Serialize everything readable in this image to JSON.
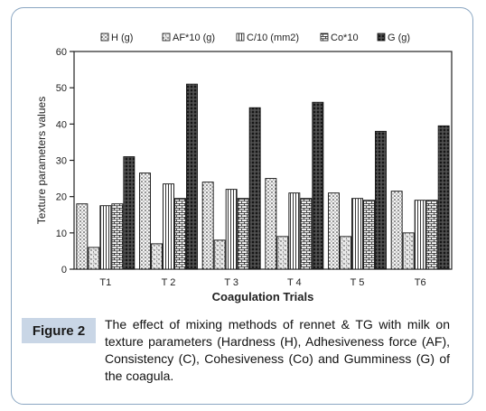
{
  "figure": {
    "label": "Figure 2",
    "caption": "The effect of mixing methods of rennet & TG with milk on texture parameters (Hardness (H), Adhesiveness force (AF), Consistency (C), Cohesiveness (Co) and Gumminess (G) of the coagula."
  },
  "chart_data": {
    "type": "bar",
    "title": "",
    "xlabel": "Coagulation Trials",
    "ylabel": "Texture parameters values",
    "categories": [
      "T1",
      "T 2",
      "T 3",
      "T 4",
      "T 5",
      "T6"
    ],
    "ylim": [
      0,
      60
    ],
    "yticks": [
      "0",
      "10",
      "20",
      "30",
      "40",
      "50",
      "60"
    ],
    "legend_position": "top",
    "grid": false,
    "series": [
      {
        "name": "H (g)",
        "values": [
          18,
          26.5,
          24,
          25,
          21,
          21.5
        ]
      },
      {
        "name": "AF*10 (g)",
        "values": [
          6,
          7,
          8,
          9,
          9,
          10
        ]
      },
      {
        "name": "C/10 (mm2)",
        "values": [
          17.5,
          23.5,
          22,
          21,
          19.5,
          19
        ]
      },
      {
        "name": "Co*10",
        "values": [
          18,
          19.5,
          19.5,
          19.5,
          19,
          19
        ]
      },
      {
        "name": "G (g)",
        "values": [
          31,
          51,
          44.5,
          46,
          38,
          39.5
        ]
      }
    ]
  }
}
